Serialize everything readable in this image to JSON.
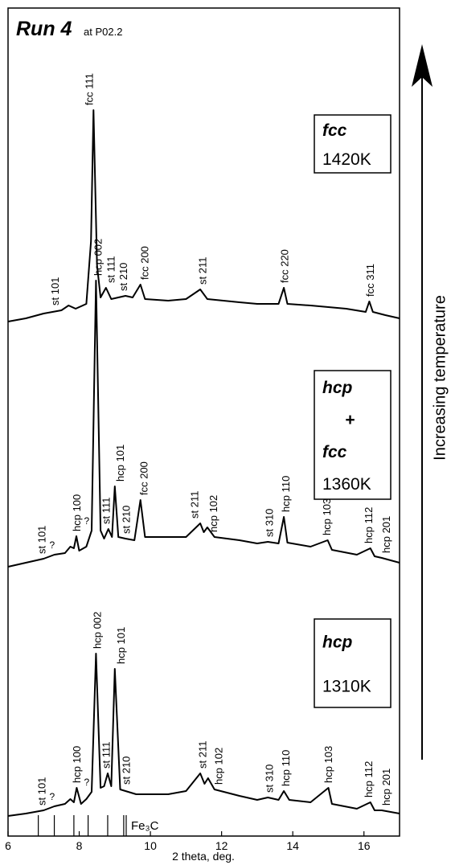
{
  "chart_data": {
    "type": "line",
    "title": "Run 4",
    "subtitle": "at P02.2",
    "xlabel": "2 theta, deg.",
    "side_label": "Increasing temperature",
    "xlim": [
      6,
      17
    ],
    "xticks": [
      6,
      8,
      10,
      12,
      14,
      16
    ],
    "color": "#000000",
    "series": [
      {
        "phase": [
          "fcc"
        ],
        "temperature": "1420K",
        "x": [
          6,
          6.5,
          7,
          7.5,
          7.7,
          7.9,
          8.2,
          8.33,
          8.4,
          8.5,
          8.6,
          8.75,
          8.9,
          9.3,
          9.5,
          9.72,
          9.85,
          10.5,
          11,
          11.4,
          11.6,
          12.5,
          13,
          13.6,
          13.75,
          13.85,
          14.5,
          15.5,
          16.05,
          16.15,
          16.25,
          16.6,
          17
        ],
        "values": [
          0,
          4,
          10,
          14,
          20,
          16,
          22,
          100,
          263,
          70,
          30,
          42,
          28,
          32,
          30,
          46,
          28,
          26,
          28,
          40,
          28,
          24,
          22,
          22,
          42,
          22,
          20,
          16,
          12,
          25,
          12,
          8,
          4
        ],
        "peaks": [
          {
            "label": "st 101",
            "x": 7.35
          },
          {
            "label": "fcc 111",
            "x": 8.3
          },
          {
            "label": "st 111",
            "x": 8.91
          },
          {
            "label": "st 210",
            "x": 9.27
          },
          {
            "label": "fcc 200",
            "x": 9.86
          },
          {
            "label": "st 211",
            "x": 11.49
          },
          {
            "label": "fcc 220",
            "x": 13.79
          },
          {
            "label": "fcc 311",
            "x": 16.2
          }
        ]
      },
      {
        "phase": [
          "hcp",
          "+",
          "fcc"
        ],
        "temperature": "1360K",
        "x": [
          6,
          6.5,
          7,
          7.3,
          7.6,
          7.75,
          7.85,
          7.92,
          8,
          8.2,
          8.35,
          8.47,
          8.6,
          8.7,
          8.82,
          8.92,
          9,
          9.1,
          9.3,
          9.55,
          9.72,
          9.85,
          10.5,
          11,
          11.4,
          11.5,
          11.6,
          11.8,
          12.5,
          13,
          13.3,
          13.6,
          13.75,
          13.85,
          14.5,
          14.98,
          15.1,
          15.8,
          16.18,
          16.3,
          16.5,
          17
        ],
        "values": [
          0,
          5,
          10,
          15,
          17,
          25,
          23,
          38,
          20,
          25,
          45,
          356,
          45,
          35,
          47,
          37,
          100,
          37,
          35,
          33,
          83,
          37,
          37,
          37,
          54,
          43,
          49,
          37,
          33,
          29,
          31,
          29,
          62,
          30,
          25,
          33,
          21,
          15,
          23,
          13,
          11,
          5
        ],
        "peaks": [
          {
            "label": "?",
            "x": 7.24
          },
          {
            "label": "st 101",
            "x": 6.97
          },
          {
            "label": "hcp 100",
            "x": 7.96
          },
          {
            "label": "?",
            "x": 8.21
          },
          {
            "label": "hcp 002",
            "x": 8.55
          },
          {
            "label": "st 111",
            "x": 8.78
          },
          {
            "label": "hcp 101",
            "x": 9.18
          },
          {
            "label": "st 210",
            "x": 9.34
          },
          {
            "label": "fcc 200",
            "x": 9.84
          },
          {
            "label": "st 211",
            "x": 11.26
          },
          {
            "label": "hcp 102",
            "x": 11.8
          },
          {
            "label": "st 310",
            "x": 13.36
          },
          {
            "label": "hcp 110",
            "x": 13.83
          },
          {
            "label": "hcp 103",
            "x": 14.98
          },
          {
            "label": "hcp 112",
            "x": 16.16
          },
          {
            "label": "hcp 201",
            "x": 16.65
          }
        ]
      },
      {
        "phase": [
          "hcp"
        ],
        "temperature": "1310K",
        "x": [
          6,
          6.5,
          7,
          7.3,
          7.6,
          7.75,
          7.85,
          7.93,
          8.05,
          8.2,
          8.35,
          8.47,
          8.6,
          8.7,
          8.8,
          8.9,
          9,
          9.15,
          9.3,
          9.6,
          10.5,
          11,
          11.4,
          11.52,
          11.62,
          11.8,
          12.5,
          13,
          13.3,
          13.6,
          13.75,
          13.9,
          14.5,
          15,
          15.1,
          15.8,
          16.18,
          16.3,
          16.5,
          17
        ],
        "values": [
          3,
          6,
          10,
          15,
          18,
          24,
          20,
          38,
          18,
          24,
          33,
          205,
          38,
          40,
          56,
          40,
          186,
          36,
          34,
          30,
          30,
          34,
          56,
          43,
          50,
          36,
          28,
          23,
          26,
          23,
          34,
          23,
          20,
          38,
          18,
          12,
          20,
          10,
          10,
          6
        ],
        "peaks": [
          {
            "label": "?",
            "x": 7.24
          },
          {
            "label": "st 101",
            "x": 6.97
          },
          {
            "label": "hcp 100",
            "x": 7.96
          },
          {
            "label": "?",
            "x": 8.21
          },
          {
            "label": "hcp 002",
            "x": 8.53
          },
          {
            "label": "st 111",
            "x": 8.78
          },
          {
            "label": "hcp 101",
            "x": 9.2
          },
          {
            "label": "st 210",
            "x": 9.34
          },
          {
            "label": "st 211",
            "x": 11.49
          },
          {
            "label": "hcp 102",
            "x": 11.94
          },
          {
            "label": "st 310",
            "x": 13.36
          },
          {
            "label": "hcp 110",
            "x": 13.83
          },
          {
            "label": "hcp 103",
            "x": 15.03
          },
          {
            "label": "hcp 112",
            "x": 16.16
          },
          {
            "label": "hcp 201",
            "x": 16.65
          }
        ]
      }
    ],
    "reference": {
      "label": "Fe₃C",
      "x": [
        6.85,
        7.3,
        7.85,
        8.25,
        8.8,
        9.25,
        9.32
      ]
    }
  }
}
